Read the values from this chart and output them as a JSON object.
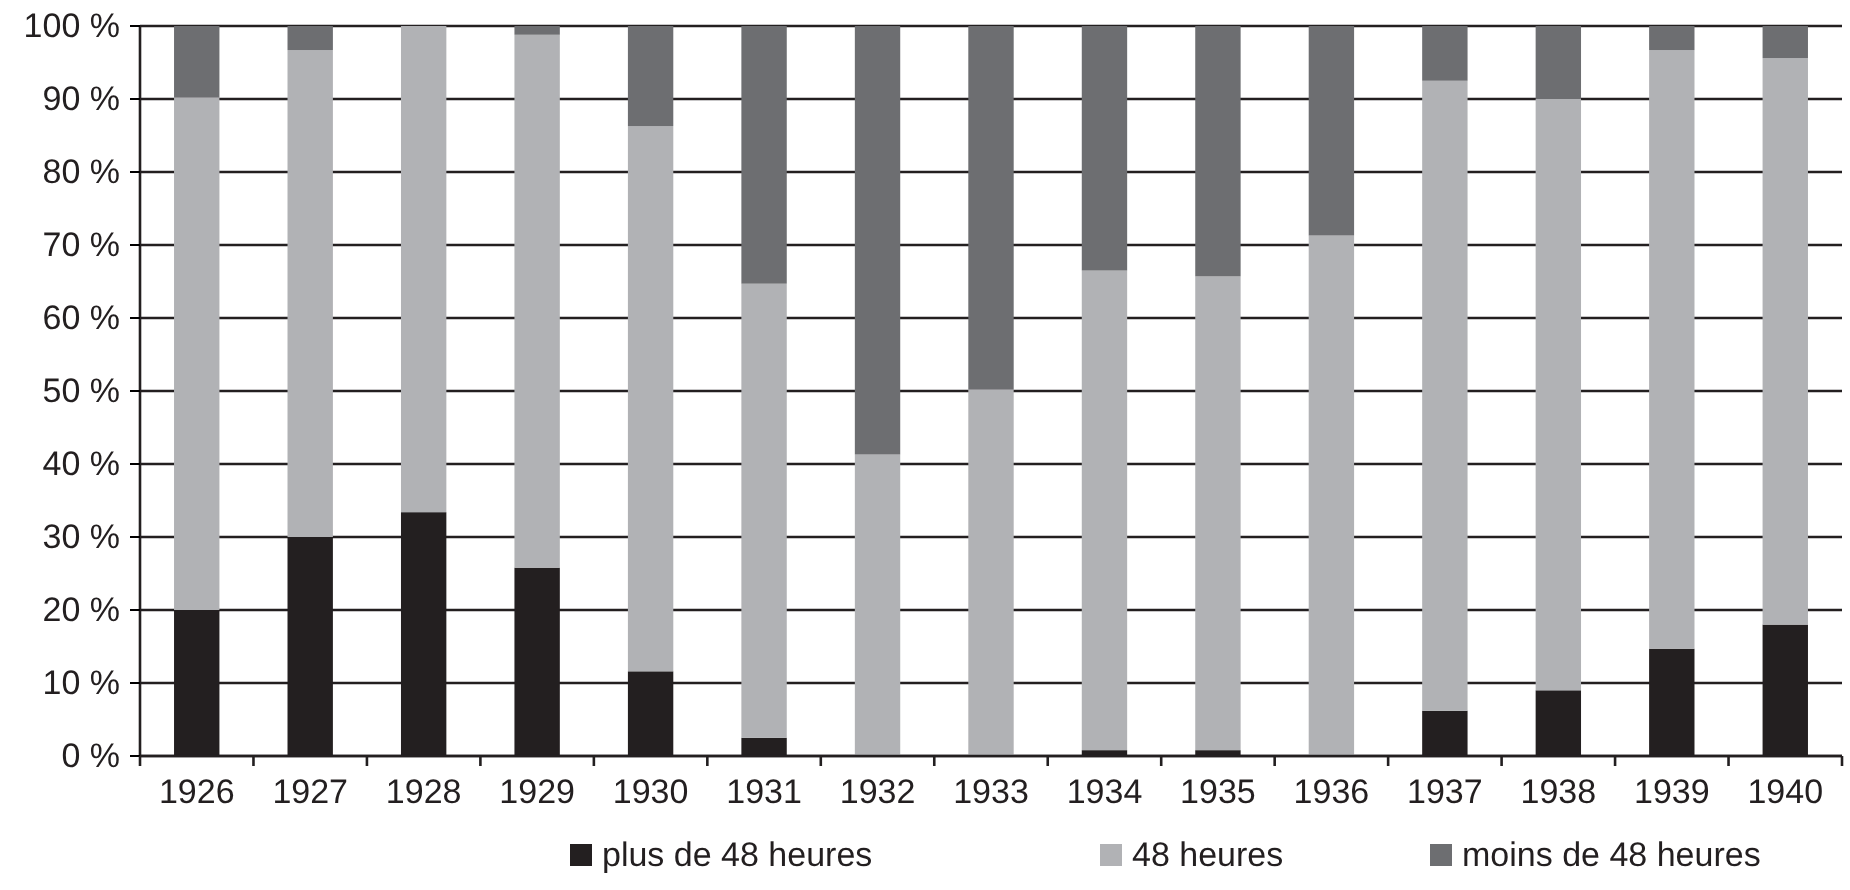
{
  "chart_data": {
    "type": "bar",
    "stacked": true,
    "categories": [
      "1926",
      "1927",
      "1928",
      "1929",
      "1930",
      "1931",
      "1932",
      "1933",
      "1934",
      "1935",
      "1936",
      "1937",
      "1938",
      "1939",
      "1940"
    ],
    "series": [
      {
        "name": "plus de 48 heures",
        "color": "#231f20",
        "values": [
          20,
          30,
          33.4,
          25.8,
          11.6,
          2.5,
          0,
          0,
          0.8,
          0.8,
          0,
          6.2,
          9,
          14.7,
          18
        ]
      },
      {
        "name": "48 heures",
        "color": "#b1b2b5",
        "values": [
          70.2,
          66.7,
          66.6,
          73,
          74.7,
          62.2,
          41.3,
          50.2,
          65.7,
          64.9,
          71.3,
          86.3,
          81,
          82,
          77.6
        ]
      },
      {
        "name": "moins de 48 heures",
        "color": "#6d6e71",
        "values": [
          9.8,
          3.3,
          0,
          1.2,
          13.7,
          35.3,
          58.7,
          49.8,
          33.5,
          34.3,
          28.7,
          7.5,
          10,
          3.3,
          4.4
        ]
      }
    ],
    "ylim": [
      0,
      100
    ],
    "yticks": [
      {
        "value": 0,
        "label": "0 %"
      },
      {
        "value": 10,
        "label": "10 %"
      },
      {
        "value": 20,
        "label": "20 %"
      },
      {
        "value": 30,
        "label": "30 %"
      },
      {
        "value": 40,
        "label": "40 %"
      },
      {
        "value": 50,
        "label": "50 %"
      },
      {
        "value": 60,
        "label": "60 %"
      },
      {
        "value": 70,
        "label": "70 %"
      },
      {
        "value": 80,
        "label": "80 %"
      },
      {
        "value": 90,
        "label": "90 %"
      },
      {
        "value": 100,
        "label": "100 %"
      }
    ],
    "grid": "y",
    "legend": "bottom"
  }
}
